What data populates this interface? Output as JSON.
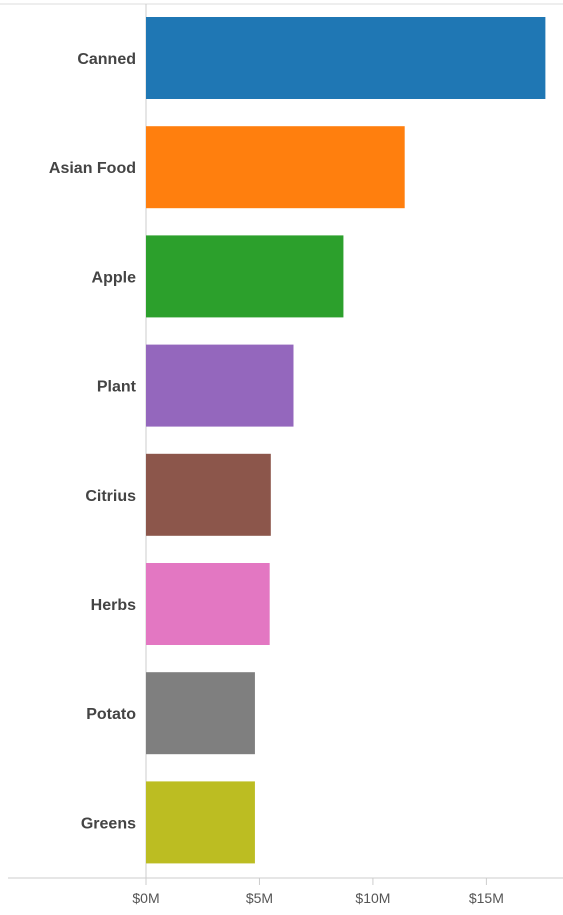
{
  "chart_data": {
    "type": "bar",
    "orientation": "horizontal",
    "categories": [
      "Canned",
      "Asian Food",
      "Apple",
      "Plant",
      "Citrius",
      "Herbs",
      "Potato",
      "Greens"
    ],
    "values": [
      17.6,
      11.4,
      8.7,
      6.5,
      5.5,
      5.45,
      4.8,
      4.8
    ],
    "colors": [
      "#1f77b4",
      "#ff7f0e",
      "#2ca02c",
      "#9467bd",
      "#8c564b",
      "#e377c2",
      "#7f7f7f",
      "#bcbd22"
    ],
    "xticks": [
      {
        "value": 0,
        "label": "$0M"
      },
      {
        "value": 5,
        "label": "$5M"
      },
      {
        "value": 10,
        "label": "$10M"
      },
      {
        "value": 15,
        "label": "$15M"
      }
    ],
    "xlim": [
      0,
      18.2
    ],
    "title": "",
    "xlabel": "",
    "ylabel": "",
    "grid": false,
    "legend": "none"
  }
}
